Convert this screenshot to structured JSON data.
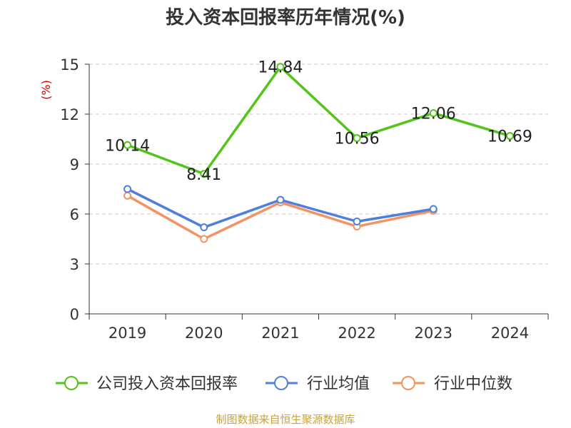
{
  "chart_data": {
    "type": "line",
    "title": "投入资本回报率历年情况(%)",
    "ylabel": "(%)",
    "xlabel": "",
    "categories": [
      "2019",
      "2020",
      "2021",
      "2022",
      "2023",
      "2024"
    ],
    "ylim": [
      0,
      15
    ],
    "yticks": [
      0,
      3,
      6,
      9,
      12,
      15
    ],
    "grid": true,
    "legend_position": "bottom",
    "series": [
      {
        "name": "公司投入资本回报率",
        "color": "#52c41a",
        "values": [
          10.14,
          8.41,
          14.84,
          10.56,
          12.06,
          10.69
        ],
        "show_labels": true
      },
      {
        "name": "行业均值",
        "color": "#4f7fdc",
        "values": [
          7.5,
          5.2,
          6.85,
          5.55,
          6.3,
          null
        ],
        "show_labels": false
      },
      {
        "name": "行业中位数",
        "color": "#f39263",
        "values": [
          7.1,
          4.5,
          6.7,
          5.25,
          6.2,
          null
        ],
        "show_labels": false
      }
    ]
  },
  "source": "制图数据来自恒生聚源数据库"
}
